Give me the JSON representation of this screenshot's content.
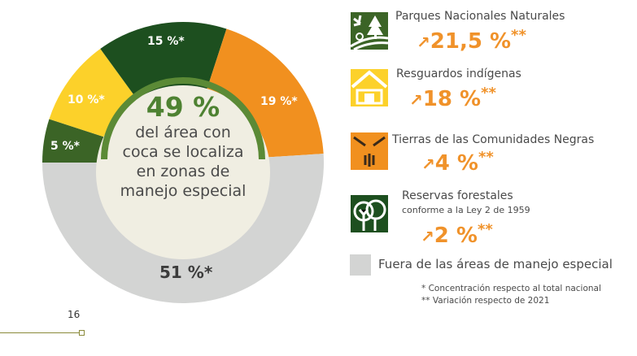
{
  "chart_data": {
    "type": "pie",
    "donut": true,
    "slices": [
      {
        "label": "5 %*",
        "value": 5,
        "color": "#3b6426"
      },
      {
        "label": "10 %*",
        "value": 10,
        "color": "#fcd12a"
      },
      {
        "label": "15 %*",
        "value": 15,
        "color": "#1d4f1f"
      },
      {
        "label": "19 %*",
        "value": 19,
        "color": "#f1901f"
      },
      {
        "label": "51 %*",
        "value": 51,
        "color": "#d3d4d3"
      }
    ],
    "center": {
      "value": "49 %",
      "text": [
        "del área con",
        "coca se localiza",
        "en zonas de",
        "manejo especial"
      ]
    }
  },
  "legend": [
    {
      "title": "Parques Nacionales Naturales",
      "value": "21,5 %",
      "mark": "**",
      "icon": "park-icon",
      "color": "#3b6426"
    },
    {
      "title": "Resguardos indígenas",
      "value": "18 %",
      "mark": "**",
      "icon": "indigenous-house-icon",
      "color": "#fcd12a"
    },
    {
      "title": "Tierras de las Comunidades Negras",
      "value": "4 %",
      "mark": "**",
      "icon": "hands-icon",
      "color": "#f1901f"
    },
    {
      "title": "Reservas forestales",
      "subtitle": "conforme a la Ley 2 de 1959",
      "value": "2 %",
      "mark": "**",
      "icon": "trees-icon",
      "color": "#1d4f1f"
    },
    {
      "title": "Fuera de las áreas de manejo especial",
      "color": "#d3d4d3"
    }
  ],
  "trend_icon": "up-trend-arrow-icon",
  "notes": [
    "* Concentración respecto al total nacional",
    "** Variación respecto de 2021"
  ],
  "page_number": "16"
}
